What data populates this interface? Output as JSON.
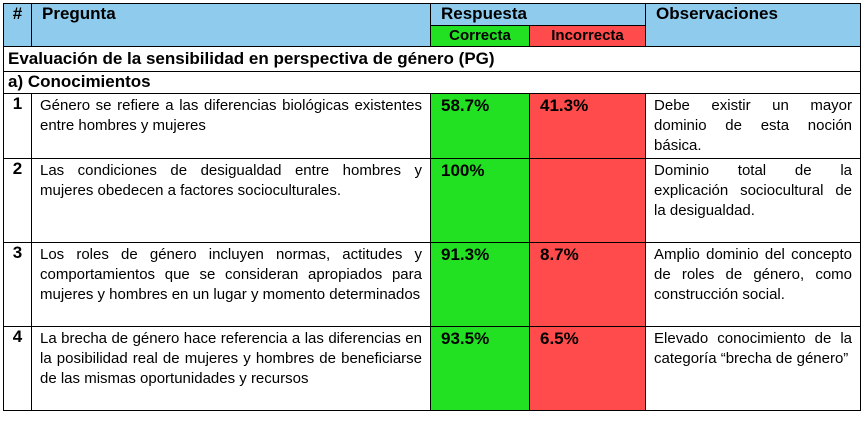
{
  "header": {
    "num": "#",
    "pregunta": "Pregunta",
    "respuesta": "Respuesta",
    "correcta": "Correcta",
    "incorrecta": "Incorrecta",
    "observaciones": "Observaciones"
  },
  "section_title": "Evaluación de la sensibilidad en perspectiva de género (PG)",
  "subsection_title": "a) Conocimientos",
  "rows": [
    {
      "num": "1",
      "pregunta": "Género se refiere a las diferencias biológicas existentes entre hombres y mujeres",
      "correcta": "58.7%",
      "incorrecta": "41.3%",
      "observaciones": "Debe existir un mayor dominio de esta noción básica."
    },
    {
      "num": "2",
      "pregunta": "Las condiciones de desigualdad entre hombres y mujeres obedecen a factores socioculturales.",
      "correcta": "100%",
      "incorrecta": "",
      "observaciones": "Dominio total de la explicación sociocultural de la desigualdad."
    },
    {
      "num": "3",
      "pregunta": "Los roles de género incluyen normas, actitudes y comportamientos que se consideran apropiados para mujeres y hombres en un lugar y momento determinados",
      "correcta": "91.3%",
      "incorrecta": "8.7%",
      "observaciones": "Amplio dominio del concepto de roles de género, como construcción social."
    },
    {
      "num": "4",
      "pregunta": "La brecha de género hace referencia a las diferencias en la posibilidad real de mujeres y hombres de beneficiarse de las mismas oportunidades y recursos",
      "correcta": "93.5%",
      "incorrecta": "6.5%",
      "observaciones": "Elevado conocimiento de la categoría “brecha de género”"
    }
  ],
  "colors": {
    "header_bg": "#8ecbed",
    "correct_bg": "#22e022",
    "incorrect_bg": "#ff4b4b"
  }
}
